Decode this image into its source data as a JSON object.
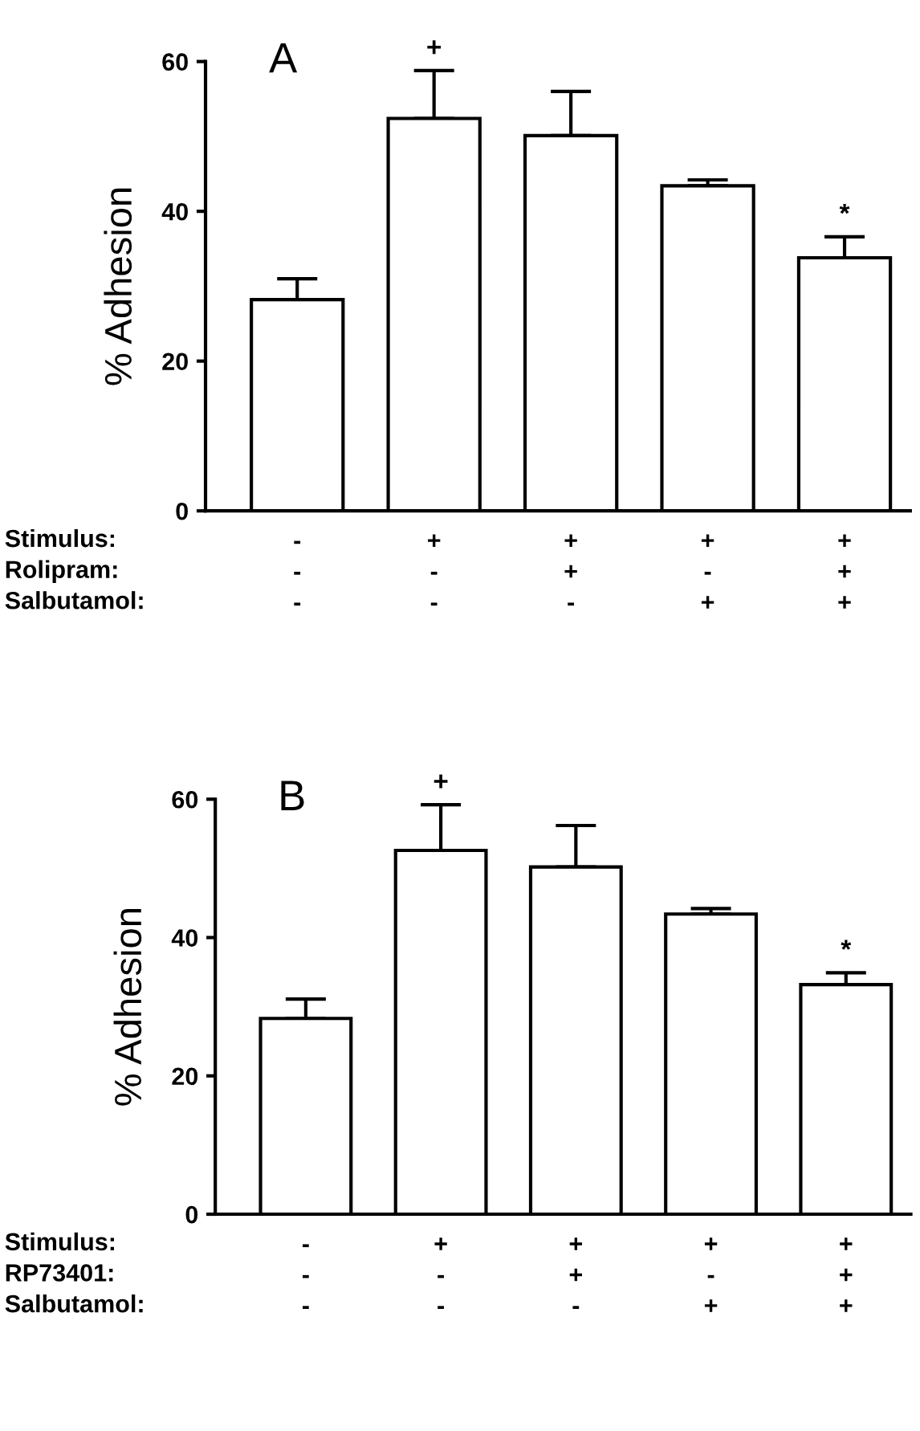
{
  "chart_data": [
    {
      "type": "bar",
      "title": "A",
      "ylabel": "% Adhesion",
      "categories": [
        "-\n-\n-",
        "+\n-\n-",
        "+\n+\n-",
        "+\n-\n+",
        "+\n+\n+"
      ],
      "values": [
        28.2,
        52.4,
        50.1,
        43.4,
        33.8
      ],
      "errors": [
        [
          28.2,
          31.0
        ],
        [
          52.4,
          58.8
        ],
        [
          50.1,
          56.0
        ],
        [
          43.4,
          44.2
        ],
        [
          33.8,
          36.6
        ]
      ],
      "color": "#ffffff",
      "ylim": [
        0,
        60
      ],
      "yticks": [
        0,
        20,
        40,
        60
      ],
      "grid": false,
      "annotations": [
        "Stimulus:",
        "Rolipram:",
        "Salbutamol:",
        {
          "text": "+",
          "x": "+\n-\n-",
          "y": 58.8
        },
        {
          "text": "*",
          "x": "+\n+\n+",
          "y": 36.6
        }
      ]
    },
    {
      "type": "bar",
      "title": "B",
      "ylabel": "% Adhesion",
      "categories": [
        "-\n-\n-",
        "+\n-\n-",
        "+\n+\n-",
        "+\n-\n+",
        "+\n+\n+"
      ],
      "values": [
        28.3,
        52.6,
        50.2,
        43.4,
        33.2
      ],
      "errors": [
        [
          28.3,
          31.1
        ],
        [
          52.6,
          59.2
        ],
        [
          50.2,
          56.2
        ],
        [
          43.4,
          44.2
        ],
        [
          33.2,
          34.9
        ]
      ],
      "color": "#ffffff",
      "ylim": [
        0,
        60
      ],
      "yticks": [
        0,
        20,
        40,
        60
      ],
      "grid": false,
      "annotations": [
        "Stimulus:",
        "RP73401:",
        "Salbutamol:",
        {
          "text": "+",
          "x": "+\n-\n-",
          "y": 59.2
        },
        {
          "text": "*",
          "x": "+\n+\n+",
          "y": 34.9
        }
      ]
    }
  ]
}
